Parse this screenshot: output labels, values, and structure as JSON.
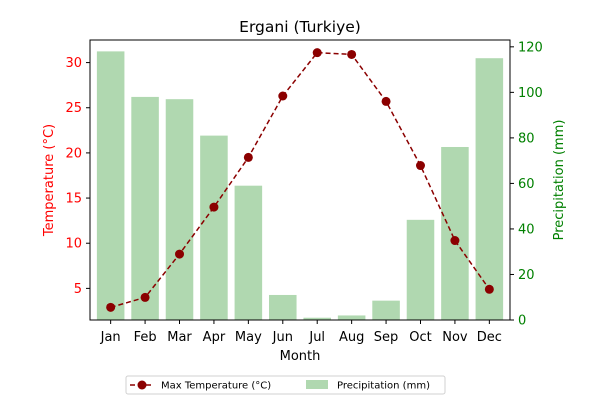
{
  "chart_data": {
    "type": "bar+line",
    "title": "Ergani (Turkiye)",
    "xlabel": "Month",
    "categories": [
      "Jan",
      "Feb",
      "Mar",
      "Apr",
      "May",
      "Jun",
      "Jul",
      "Aug",
      "Sep",
      "Oct",
      "Nov",
      "Dec"
    ],
    "left_axis": {
      "label": "Temperature (°C)",
      "ylim": [
        1.5,
        32.5
      ],
      "ticks": [
        5,
        10,
        15,
        20,
        25,
        30
      ],
      "color": "#ff0000"
    },
    "right_axis": {
      "label": "Precipitation (mm)",
      "ylim": [
        0,
        123
      ],
      "ticks": [
        0,
        20,
        40,
        60,
        80,
        100,
        120
      ],
      "color": "#008000"
    },
    "series": [
      {
        "name": "Max Temperature (°C)",
        "type": "line",
        "axis": "left",
        "color": "#8b0000",
        "style": "dashed",
        "values": [
          2.9,
          4.0,
          8.8,
          14.0,
          19.5,
          26.3,
          31.1,
          30.9,
          25.7,
          18.6,
          10.3,
          4.9
        ]
      },
      {
        "name": "Precipitation (mm)",
        "type": "bar",
        "axis": "right",
        "color": "#b0d8b0",
        "values": [
          118,
          98,
          97,
          81,
          59,
          11,
          1,
          2,
          8.5,
          44,
          76,
          115
        ]
      }
    ],
    "legend": "bottom-center",
    "grid": false
  }
}
